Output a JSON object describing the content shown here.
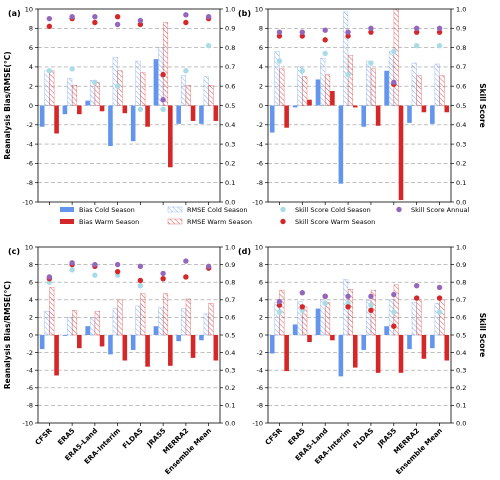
{
  "legend": {
    "items": [
      {
        "key": "bias_cold",
        "label": "Bias Cold Season"
      },
      {
        "key": "bias_warm",
        "label": "Bias Warm Season"
      },
      {
        "key": "rmse_cold",
        "label": "RMSE Cold Season"
      },
      {
        "key": "rmse_warm",
        "label": "RMSE Warm Season"
      },
      {
        "key": "skill_cold",
        "label": "Skill Score Cold Season"
      },
      {
        "key": "skill_warm",
        "label": "Skill Score Warm Season"
      },
      {
        "key": "skill_annual",
        "label": "Skill Score Annual"
      }
    ]
  },
  "colors": {
    "bias_cold": "#6495ED",
    "bias_warm": "#D62728",
    "rmse_cold": "#6495ED",
    "rmse_warm": "#D62728",
    "skill_cold": "#A8DCE6",
    "skill_warm": "#D62728",
    "skill_annual": "#9467BD",
    "grid": "#9a9a9a"
  },
  "chart_data": [
    {
      "type": "bar",
      "panel": "(a)",
      "categories": [
        "CFSR",
        "ERA5",
        "ERA5-Land",
        "ERA-Interim",
        "FLDAS",
        "JRA55",
        "MERRA2",
        "Ensemble Mean"
      ],
      "ylabel": "Reanalysis Bias/RMSE(°C)",
      "y2label": "",
      "ylim": [
        -10,
        10
      ],
      "y2lim": [
        0.0,
        1.0
      ],
      "yticks": [
        -10,
        -8,
        -6,
        -4,
        -2,
        0,
        2,
        4,
        6,
        8,
        10
      ],
      "y2ticks": [
        0.0,
        0.1,
        0.2,
        0.3,
        0.4,
        0.5,
        0.6,
        0.7,
        0.8,
        0.9,
        1.0
      ],
      "grid": true,
      "series": [
        {
          "key": "bias_cold",
          "values": [
            -2.2,
            -0.9,
            0.5,
            -4.2,
            -3.7,
            4.8,
            -1.9,
            -1.9
          ]
        },
        {
          "key": "bias_warm",
          "values": [
            -2.9,
            -0.9,
            -0.6,
            -0.8,
            -2.2,
            -6.4,
            -1.6,
            -1.6
          ]
        },
        {
          "key": "rmse_cold",
          "values": [
            3.6,
            2.8,
            2.6,
            5.0,
            4.6,
            6.0,
            3.1,
            3.0
          ]
        },
        {
          "key": "rmse_warm",
          "values": [
            3.6,
            2.1,
            2.4,
            3.6,
            3.4,
            8.6,
            2.1,
            2.1
          ]
        },
        {
          "key": "skill_cold",
          "values": [
            0.68,
            0.69,
            0.62,
            0.6,
            0.48,
            0.48,
            0.68,
            0.81
          ]
        },
        {
          "key": "skill_warm",
          "values": [
            0.91,
            0.95,
            0.93,
            0.96,
            0.92,
            0.66,
            0.93,
            0.95
          ]
        },
        {
          "key": "skill_annual",
          "values": [
            0.95,
            0.96,
            0.96,
            0.92,
            0.94,
            0.53,
            0.97,
            0.96
          ]
        }
      ]
    },
    {
      "type": "bar",
      "panel": "(b)",
      "categories": [
        "CFSR",
        "ERA5",
        "ERA5-Land",
        "ERA-Interim",
        "FLDAS",
        "JRA55",
        "MERRA2",
        "Ensemble Mean"
      ],
      "ylabel": "",
      "y2label": "Skill Score",
      "ylim": [
        -10,
        10
      ],
      "y2lim": [
        0.0,
        1.0
      ],
      "yticks": [
        -10,
        -8,
        -6,
        -4,
        -2,
        0,
        2,
        4,
        6,
        8,
        10
      ],
      "y2ticks": [
        0.0,
        0.1,
        0.2,
        0.3,
        0.4,
        0.5,
        0.6,
        0.7,
        0.8,
        0.9,
        1.0
      ],
      "grid": true,
      "series": [
        {
          "key": "bias_cold",
          "values": [
            -2.8,
            -0.2,
            2.7,
            -8.1,
            -2.2,
            3.6,
            -1.8,
            -1.9
          ]
        },
        {
          "key": "bias_warm",
          "values": [
            -2.3,
            0.6,
            1.5,
            -0.2,
            -2.1,
            -9.8,
            -0.7,
            -0.7
          ]
        },
        {
          "key": "rmse_cold",
          "values": [
            5.6,
            4.0,
            4.9,
            9.7,
            4.6,
            5.6,
            4.4,
            4.3
          ]
        },
        {
          "key": "rmse_warm",
          "values": [
            3.8,
            3.0,
            3.2,
            5.2,
            3.8,
            10.0,
            3.1,
            3.1
          ]
        },
        {
          "key": "skill_cold",
          "values": [
            0.73,
            0.68,
            0.77,
            0.66,
            0.72,
            0.78,
            0.81,
            0.81
          ]
        },
        {
          "key": "skill_warm",
          "values": [
            0.86,
            0.86,
            0.84,
            0.86,
            0.88,
            0.61,
            0.88,
            0.88
          ]
        },
        {
          "key": "skill_annual",
          "values": [
            0.88,
            0.88,
            0.89,
            0.88,
            0.9,
            0.62,
            0.9,
            0.9
          ]
        }
      ]
    },
    {
      "type": "bar",
      "panel": "(c)",
      "categories": [
        "CFSR",
        "ERA5",
        "ERA5-Land",
        "ERA-Interim",
        "FLDAS",
        "JRA55",
        "MERRA2",
        "Ensemble Mean"
      ],
      "ylabel": "Reanalysis Bias/RMSE(°C)",
      "y2label": "",
      "ylim": [
        -10,
        10
      ],
      "y2lim": [
        0.0,
        1.0
      ],
      "yticks": [
        -10,
        -8,
        -6,
        -4,
        -2,
        0,
        2,
        4,
        6,
        8,
        10
      ],
      "y2ticks": [
        0.0,
        0.1,
        0.2,
        0.3,
        0.4,
        0.5,
        0.6,
        0.7,
        0.8,
        0.9,
        1.0
      ],
      "grid": true,
      "series": [
        {
          "key": "bias_cold",
          "values": [
            -1.6,
            -0.1,
            1.0,
            -2.2,
            -1.7,
            1.0,
            -0.7,
            -0.6
          ]
        },
        {
          "key": "bias_warm",
          "values": [
            -4.6,
            -1.5,
            -1.3,
            -2.9,
            -3.6,
            -3.5,
            -2.6,
            -2.9
          ]
        },
        {
          "key": "rmse_cold",
          "values": [
            2.7,
            2.0,
            2.0,
            3.0,
            3.3,
            3.1,
            3.0,
            2.4
          ]
        },
        {
          "key": "rmse_warm",
          "values": [
            5.4,
            2.8,
            2.7,
            4.0,
            4.7,
            4.7,
            4.1,
            3.6
          ]
        },
        {
          "key": "skill_cold",
          "values": [
            0.8,
            0.87,
            0.84,
            0.84,
            0.78,
            0.82,
            0.83,
            0.88
          ]
        },
        {
          "key": "skill_warm",
          "values": [
            0.82,
            0.9,
            0.89,
            0.86,
            0.81,
            0.82,
            0.83,
            0.88
          ]
        },
        {
          "key": "skill_annual",
          "values": [
            0.83,
            0.91,
            0.9,
            0.9,
            0.89,
            0.85,
            0.92,
            0.89
          ]
        }
      ]
    },
    {
      "type": "bar",
      "panel": "(d)",
      "categories": [
        "CFSR",
        "ERA5",
        "ERA5-Land",
        "ERA-Interim",
        "FLDAS",
        "JRA55",
        "MERRA2",
        "Ensemble Mean"
      ],
      "ylabel": "",
      "y2label": "Skill Score",
      "ylim": [
        -10,
        10
      ],
      "y2lim": [
        0.0,
        1.0
      ],
      "yticks": [
        -10,
        -8,
        -6,
        -4,
        -2,
        0,
        2,
        4,
        6,
        8,
        10
      ],
      "y2ticks": [
        0.0,
        0.1,
        0.2,
        0.3,
        0.4,
        0.5,
        0.6,
        0.7,
        0.8,
        0.9,
        1.0
      ],
      "grid": true,
      "series": [
        {
          "key": "bias_cold",
          "values": [
            -2.1,
            1.2,
            3.0,
            -4.7,
            -1.7,
            1.0,
            -1.6,
            -1.5
          ]
        },
        {
          "key": "bias_warm",
          "values": [
            -4.1,
            -0.8,
            -0.6,
            -3.7,
            -4.3,
            -4.3,
            -2.7,
            -2.9
          ]
        },
        {
          "key": "rmse_cold",
          "values": [
            3.7,
            3.8,
            4.0,
            6.3,
            3.9,
            4.0,
            3.7,
            3.6
          ]
        },
        {
          "key": "rmse_warm",
          "values": [
            5.1,
            3.2,
            3.7,
            5.2,
            5.1,
            5.7,
            4.0,
            4.0
          ]
        },
        {
          "key": "skill_cold",
          "values": [
            0.63,
            0.64,
            0.68,
            0.68,
            0.67,
            0.63,
            0.71,
            0.63
          ]
        },
        {
          "key": "skill_warm",
          "values": [
            0.67,
            0.66,
            0.72,
            0.66,
            0.64,
            0.55,
            0.71,
            0.71
          ]
        },
        {
          "key": "skill_annual",
          "values": [
            0.69,
            0.74,
            0.72,
            0.72,
            0.72,
            0.73,
            0.78,
            0.77
          ]
        }
      ]
    }
  ]
}
